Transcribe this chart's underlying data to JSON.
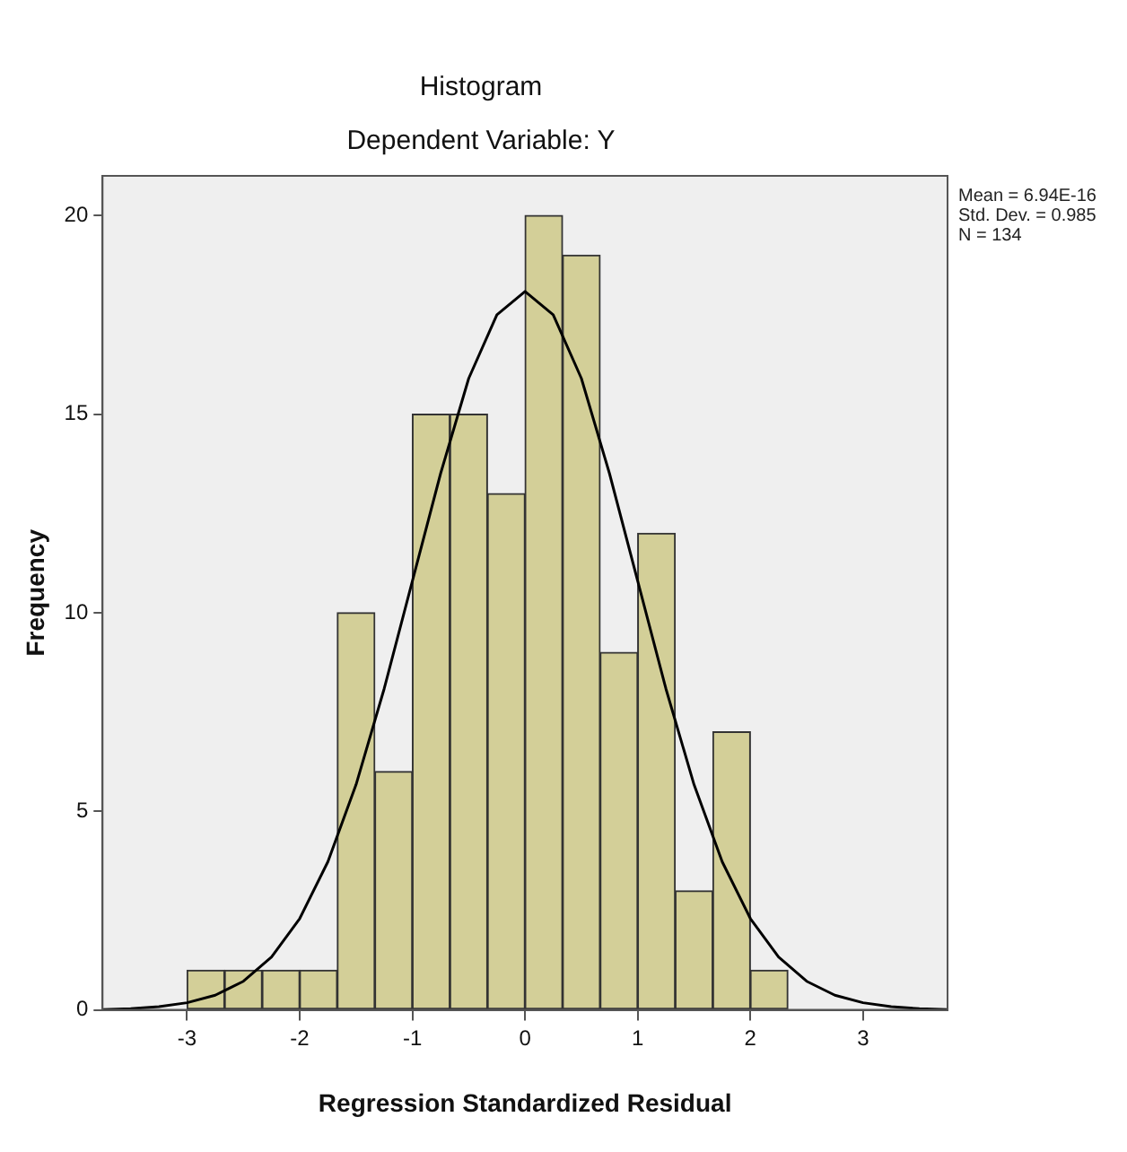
{
  "chart_data": {
    "type": "histogram",
    "title": "Histogram",
    "subtitle": "Dependent Variable: Y",
    "xlabel": "Regression Standardized Residual",
    "ylabel": "Frequency",
    "series": [
      {
        "type": "histogram",
        "color": "#d3cf98",
        "bins": [
          -3,
          -2.667,
          -2.333,
          -2,
          -1.667,
          -1.333,
          -1,
          -0.667,
          -0.333,
          0,
          0.333,
          0.667,
          1,
          1.333,
          1.667,
          2,
          2.333
        ],
        "values": [
          1,
          1,
          1,
          1,
          10,
          6,
          15,
          15,
          13,
          20,
          19,
          9,
          12,
          3,
          7,
          1
        ]
      },
      {
        "type": "line",
        "color": "#000000",
        "x": [
          -3.75,
          -3.5,
          -3.25,
          -3,
          -2.75,
          -2.5,
          -2.25,
          -2,
          -1.75,
          -1.5,
          -1.25,
          -1,
          -0.75,
          -0.5,
          -0.25,
          0,
          0.25,
          0.5,
          0.75,
          1,
          1.25,
          1.5,
          1.75,
          2,
          2.25,
          2.5,
          2.75,
          3,
          3.25,
          3.5,
          3.75
        ],
        "values": [
          0.01,
          0.03,
          0.08,
          0.18,
          0.37,
          0.72,
          1.33,
          2.3,
          3.73,
          5.67,
          8.09,
          10.8,
          13.5,
          15.9,
          17.5,
          18.09,
          17.5,
          15.9,
          13.5,
          10.8,
          8.09,
          5.67,
          3.73,
          2.3,
          1.33,
          0.72,
          0.37,
          0.18,
          0.08,
          0.03,
          0.01
        ]
      }
    ],
    "xlim": [
      -3.75,
      3.75
    ],
    "xticks": [
      -3,
      -2,
      -1,
      0,
      1,
      2,
      3
    ],
    "ylim": [
      0,
      21
    ],
    "yticks": [
      0,
      5,
      10,
      15,
      20
    ],
    "annotations": [
      "Mean = 6.94E-16",
      "Std. Dev. = 0.985",
      "N = 134"
    ],
    "grid": false,
    "legend": false,
    "marker": "none"
  }
}
